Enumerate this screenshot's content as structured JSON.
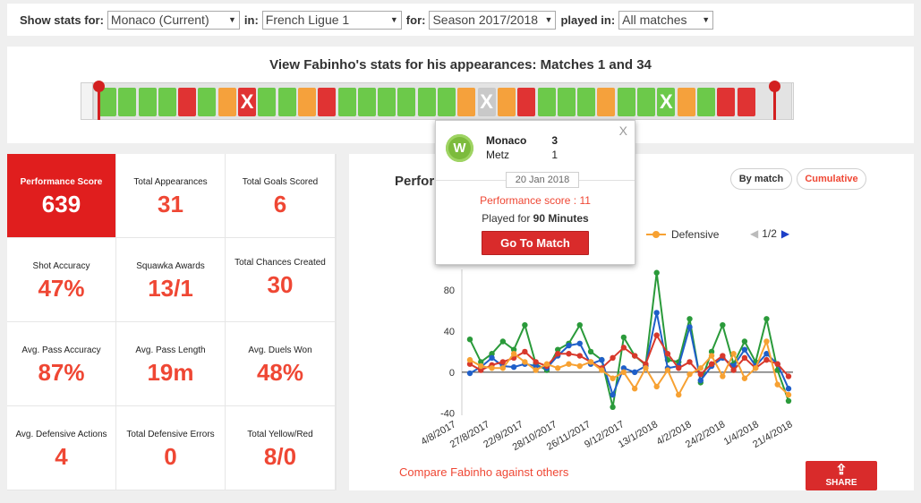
{
  "filters": {
    "show_label": "Show stats for:",
    "team": "Monaco (Current)",
    "in_label": "in:",
    "competition": "French Ligue 1",
    "for_label": "for:",
    "season": "Season 2017/2018",
    "played_label": "played in:",
    "matches": "All matches"
  },
  "strip": {
    "title": "View Fabinho's stats for his appearances: Matches 1 and 34",
    "colors": {
      "green": "#6cc94a",
      "orange": "#f5a13c",
      "red": "#e03333",
      "gray": "#c9c9c9"
    },
    "cells": [
      "green",
      "green",
      "green",
      "green",
      "red",
      "green",
      "orange",
      "x-red",
      "green",
      "green",
      "orange",
      "red",
      "green",
      "green",
      "green",
      "green",
      "green",
      "green",
      "orange",
      "x-gray",
      "orange",
      "red",
      "green",
      "green",
      "green",
      "orange",
      "green",
      "green",
      "x-green",
      "orange",
      "green",
      "red",
      "red"
    ],
    "x_mark": "X"
  },
  "stats": [
    {
      "title": "Performance Score",
      "value": "639"
    },
    {
      "title": "Total Appearances",
      "value": "31"
    },
    {
      "title": "Total Goals Scored",
      "value": "6"
    },
    {
      "title": "Shot Accuracy",
      "value": "47%"
    },
    {
      "title": "Squawka Awards",
      "value": "13/1"
    },
    {
      "title": "Total Chances Created",
      "value": "30"
    },
    {
      "title": "Avg. Pass Accuracy",
      "value": "87%"
    },
    {
      "title": "Avg. Pass Length",
      "value": "19m"
    },
    {
      "title": "Avg. Duels Won",
      "value": "48%"
    },
    {
      "title": "Avg. Defensive Actions",
      "value": "4"
    },
    {
      "title": "Total Defensive Errors",
      "value": "0"
    },
    {
      "title": "Total Yellow/Red",
      "value": "8/0"
    }
  ],
  "chart_panel": {
    "title": "Perfor",
    "by_match_label": "By match",
    "cumulative_label": "Cumulative",
    "legend_defensive": "Defensive",
    "pager": "1/2",
    "compare_link": "Compare Fabinho against others",
    "share_label": "SHARE",
    "colors": {
      "total": "#2a9a3a",
      "attack": "#1f5fc9",
      "possession": "#d8382b",
      "defensive": "#f7a132"
    }
  },
  "popup": {
    "close": "X",
    "badge": "W",
    "home_team": "Monaco",
    "home_score": "3",
    "away_team": "Metz",
    "away_score": "1",
    "date": "20 Jan 2018",
    "performance_score_text": "Performance score : 11",
    "played_prefix": "Played for",
    "played_minutes": "90 Minutes",
    "go_button": "Go To Match"
  },
  "chart_data": {
    "type": "line",
    "x_tick_labels": [
      "4/8/2017",
      "27/8/2017",
      "22/9/2017",
      "28/10/2017",
      "26/11/2017",
      "9/12/2017",
      "13/1/2018",
      "4/2/2018",
      "24/2/2018",
      "1/4/2018",
      "21/4/2018"
    ],
    "y_ticks": [
      -40,
      0,
      40,
      80
    ],
    "ylim": [
      -42,
      95
    ],
    "series": [
      {
        "name": "",
        "color_key": "total",
        "values": [
          32,
          10,
          18,
          30,
          22,
          46,
          8,
          2,
          22,
          28,
          46,
          20,
          12,
          -34,
          34,
          16,
          7,
          97,
          12,
          10,
          52,
          -10,
          20,
          46,
          8,
          30,
          10,
          52,
          2,
          -28
        ]
      },
      {
        "name": "",
        "color_key": "attack",
        "values": [
          -1,
          5,
          14,
          6,
          5,
          8,
          6,
          4,
          16,
          26,
          28,
          8,
          12,
          -22,
          4,
          0,
          6,
          58,
          4,
          6,
          44,
          -8,
          6,
          14,
          6,
          22,
          6,
          18,
          8,
          -16
        ]
      },
      {
        "name": "",
        "color_key": "possession",
        "values": [
          8,
          2,
          7,
          10,
          14,
          20,
          10,
          6,
          18,
          18,
          16,
          10,
          4,
          14,
          24,
          16,
          8,
          36,
          18,
          4,
          10,
          -2,
          8,
          16,
          2,
          14,
          4,
          12,
          8,
          -4
        ]
      },
      {
        "name": "Defensive",
        "color_key": "defensive",
        "values": [
          12,
          6,
          4,
          4,
          18,
          10,
          2,
          8,
          4,
          8,
          6,
          10,
          2,
          -6,
          0,
          -16,
          4,
          -14,
          2,
          -22,
          -2,
          4,
          16,
          -4,
          18,
          -6,
          4,
          30,
          -12,
          -22
        ]
      }
    ]
  }
}
